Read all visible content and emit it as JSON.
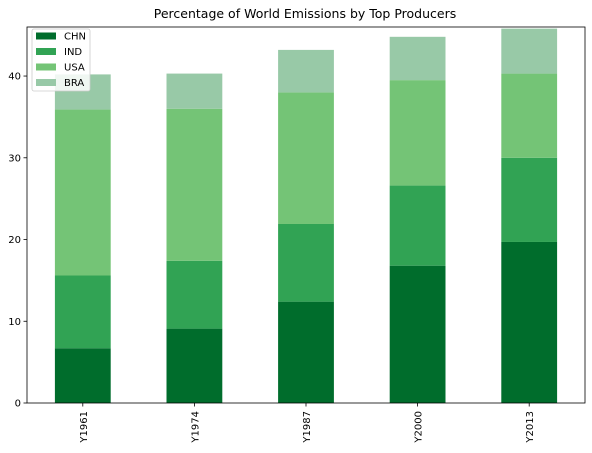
{
  "chart_data": {
    "type": "bar",
    "stacked": true,
    "title": "Percentage of World Emissions by Top Producers",
    "xlabel": "",
    "ylabel": "",
    "categories": [
      "Y1961",
      "Y1974",
      "Y1987",
      "Y2000",
      "Y2013"
    ],
    "series": [
      {
        "name": "CHN",
        "color": "#006d2c",
        "values": [
          6.7,
          9.1,
          12.4,
          16.8,
          19.7
        ]
      },
      {
        "name": "IND",
        "color": "#31a354",
        "values": [
          8.9,
          8.3,
          9.5,
          9.8,
          10.3
        ]
      },
      {
        "name": "USA",
        "color": "#74c476",
        "values": [
          20.3,
          18.6,
          16.1,
          12.9,
          10.3
        ]
      },
      {
        "name": "BRA",
        "color": "#98c9a7",
        "values": [
          4.3,
          4.3,
          5.2,
          5.3,
          5.5
        ]
      }
    ],
    "ylim": [
      0,
      46
    ],
    "yticks": [
      0,
      10,
      20,
      30,
      40
    ],
    "grid": false,
    "legend_position": "top-left"
  }
}
